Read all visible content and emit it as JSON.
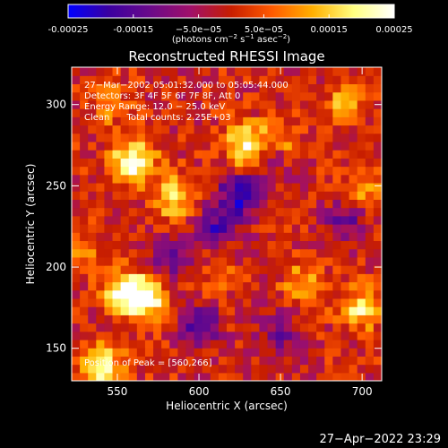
{
  "colorbar": {
    "tick_labels": [
      "-0.00025",
      "-0.00015",
      "−5.0e−05",
      "5.0e−05",
      "0.00015",
      "0.00025"
    ],
    "tick_values": [
      -0.00025,
      -0.00015,
      -5e-05,
      5e-05,
      0.00015,
      0.00025
    ],
    "range": [
      -0.00025,
      0.00025
    ],
    "unit_parts": [
      "(photons cm",
      "−2",
      " s",
      "−1",
      " asec",
      "−2",
      ")"
    ],
    "colors": [
      "#0000ff",
      "#3b00a0",
      "#6a0a8a",
      "#a0106a",
      "#c81e00",
      "#ff5a00",
      "#ffb000",
      "#ffff80",
      "#ffffff"
    ]
  },
  "chart_data": {
    "type": "heatmap",
    "title": "Reconstructed RHESSI Image",
    "xlabel": "Heliocentric X (arcsec)",
    "ylabel": "Heliocentric Y (arcsec)",
    "xlim": [
      522,
      712
    ],
    "ylim": [
      130,
      323
    ],
    "x_ticks": [
      550,
      600,
      650,
      700
    ],
    "y_ticks": [
      150,
      200,
      250,
      300
    ],
    "x_tick_labels": [
      "550",
      "600",
      "650",
      "700"
    ],
    "y_tick_labels": [
      "150",
      "200",
      "250",
      "300"
    ],
    "grid": false,
    "annotations": [
      "27−Mar−2002 05:01:32.000 to 05:05:44.000",
      "Detectors: 3F 4F 5F 6F 7F 8F, Att 0",
      "Energy Range: 12.0 − 25.0 keV",
      "Clean      Total counts: 2.25E+03"
    ],
    "peak_label": "Position of Peak = [560,266]",
    "peak_position": [
      560,
      266
    ],
    "peak_value": 0.00025,
    "bright_sources": [
      {
        "x": 630,
        "y": 275,
        "value": 0.00025
      },
      {
        "x": 560,
        "y": 266,
        "value": 0.00025
      },
      {
        "x": 555,
        "y": 185,
        "value": 0.00024
      },
      {
        "x": 540,
        "y": 140,
        "value": 0.00022
      },
      {
        "x": 568,
        "y": 180,
        "value": 0.00021
      },
      {
        "x": 585,
        "y": 243,
        "value": 0.00018
      },
      {
        "x": 700,
        "y": 175,
        "value": 0.00018
      },
      {
        "x": 650,
        "y": 275,
        "value": 0.00016
      },
      {
        "x": 665,
        "y": 190,
        "value": 0.00013
      },
      {
        "x": 690,
        "y": 300,
        "value": 0.00012
      },
      {
        "x": 700,
        "y": 250,
        "value": 0.00011
      },
      {
        "x": 530,
        "y": 210,
        "value": 0.0001
      },
      {
        "x": 545,
        "y": 300,
        "value": 9e-05
      },
      {
        "x": 610,
        "y": 195,
        "value": 7e-05
      }
    ],
    "dim_sources": [
      {
        "x": 625,
        "y": 245,
        "value": -0.00022
      },
      {
        "x": 645,
        "y": 270,
        "value": -0.00017
      },
      {
        "x": 600,
        "y": 165,
        "value": -0.00016
      },
      {
        "x": 610,
        "y": 225,
        "value": -0.00015
      },
      {
        "x": 585,
        "y": 205,
        "value": -0.00014
      },
      {
        "x": 690,
        "y": 230,
        "value": -0.00012
      },
      {
        "x": 650,
        "y": 160,
        "value": -0.00012
      }
    ]
  },
  "timestamp": "27−Apr−2022 23:29"
}
